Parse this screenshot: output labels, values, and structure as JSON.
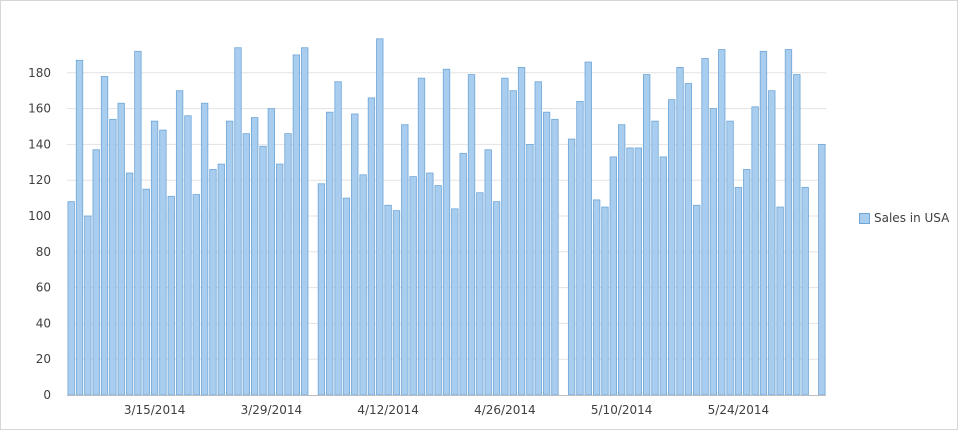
{
  "colors": {
    "bar_fill": "#a8cdef",
    "bar_stroke": "#6fa6d6",
    "grid": "#e3e3e3",
    "axis": "#bdbdbd"
  },
  "legend": {
    "label": "Sales in USA"
  },
  "chart_data": {
    "type": "bar",
    "series": [
      {
        "name": "Sales in USA",
        "values": [
          108,
          187,
          100,
          137,
          178,
          154,
          163,
          124,
          192,
          115,
          153,
          148,
          111,
          170,
          156,
          112,
          163,
          126,
          129,
          153,
          194,
          146,
          155,
          139,
          160,
          129,
          146,
          190,
          194,
          null,
          118,
          158,
          175,
          110,
          157,
          123,
          166,
          199,
          106,
          103,
          151,
          122,
          177,
          124,
          117,
          182,
          104,
          135,
          179,
          113,
          137,
          108,
          177,
          170,
          183,
          140,
          175,
          158,
          154,
          null,
          143,
          164,
          186,
          109,
          105,
          133,
          151,
          138,
          138,
          179,
          153,
          133,
          165,
          183,
          174,
          106,
          188,
          160,
          193,
          153,
          116,
          126,
          161,
          192,
          170,
          105,
          193,
          179,
          116,
          null,
          140
        ]
      }
    ],
    "x_ticks": [
      {
        "label": "3/15/2014",
        "index": 10
      },
      {
        "label": "3/29/2014",
        "index": 24
      },
      {
        "label": "4/12/2014",
        "index": 38
      },
      {
        "label": "4/26/2014",
        "index": 52
      },
      {
        "label": "5/10/2014",
        "index": 66
      },
      {
        "label": "5/24/2014",
        "index": 80
      }
    ],
    "y_ticks": [
      0,
      20,
      40,
      60,
      80,
      100,
      120,
      140,
      160,
      180
    ],
    "ylim": [
      0,
      200
    ],
    "grid": true,
    "legend_position": "right"
  }
}
